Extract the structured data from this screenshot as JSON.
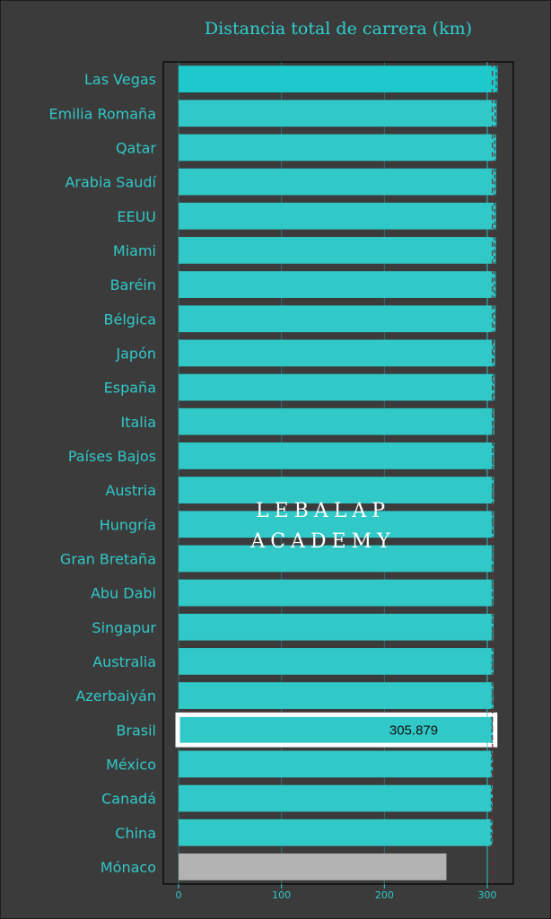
{
  "chart_data": {
    "type": "bar",
    "orientation": "horizontal",
    "title": "Distancia total de carrera (km)",
    "categories": [
      "Las Vegas",
      "Emilia Romaña",
      "Qatar",
      "Arabia Saudí",
      "EEUU",
      "Miami",
      "Baréin",
      "Bélgica",
      "Japón",
      "España",
      "Italia",
      "Países Bajos",
      "Austria",
      "Hungría",
      "Gran Bretaña",
      "Abu Dabi",
      "Singapur",
      "Australia",
      "Azerbaiyán",
      "Brasil",
      "México",
      "Canadá",
      "China",
      "Mónaco"
    ],
    "values": [
      310.05,
      309.05,
      308.6,
      308.45,
      308.4,
      308.33,
      308.24,
      308.05,
      307.47,
      307.24,
      306.72,
      306.59,
      306.45,
      306.46,
      306.2,
      306.18,
      306.14,
      306.12,
      306.05,
      305.879,
      305.35,
      305.27,
      305.07,
      260.29
    ],
    "xlim": [
      0,
      320
    ],
    "xticks": [
      0,
      100,
      200,
      300
    ],
    "xtick_labels": [
      "0",
      "100",
      "200",
      "300"
    ],
    "reference_lines": [
      300,
      305
    ],
    "highlight": {
      "category": "Brasil",
      "label": "305.879"
    },
    "colors": {
      "background": "#3b3b3b",
      "bar": "#31c8c8",
      "bar_top": "#1ec9cd",
      "bar_gray": "#b3b3b3",
      "text": "#31c8c8",
      "highlight_border": "#ffffff"
    },
    "grid": true,
    "watermark": [
      "LEBALAP",
      "ACADEMY"
    ]
  }
}
